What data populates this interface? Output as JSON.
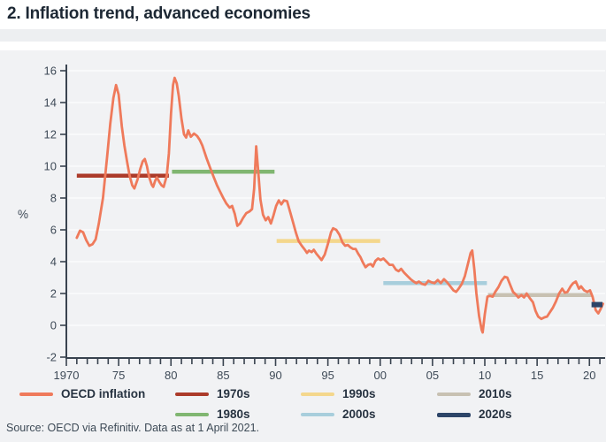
{
  "header": {
    "title": "2. Inflation trend, advanced economies"
  },
  "source": {
    "text": "Source: OECD via Refinitiv. Data as at 1 April 2021."
  },
  "colors": {
    "series": "#EF7A5B",
    "decade_1970s": "#AC3B2A",
    "decade_1980s": "#80B671",
    "decade_1990s": "#F4D78C",
    "decade_2000s": "#A8CEDC",
    "decade_2010s": "#C8C1B2",
    "decade_2020s": "#2D4568",
    "panel_background": "#f1f2f4",
    "axis": "#39434f",
    "tick_text": "#3e4a57"
  },
  "legend": {
    "items": [
      {
        "label": "OECD inflation",
        "color": "#EF7A5B"
      },
      {
        "label": "1970s",
        "color": "#AC3B2A"
      },
      {
        "label": "1980s",
        "color": "#80B671"
      },
      {
        "label": "1990s",
        "color": "#F4D78C"
      },
      {
        "label": "2000s",
        "color": "#A8CEDC"
      },
      {
        "label": "2010s",
        "color": "#C8C1B2"
      },
      {
        "label": "2020s",
        "color": "#2D4568"
      }
    ]
  },
  "chart_data": {
    "type": "line",
    "title": "2. Inflation trend, advanced economies",
    "xlabel": "",
    "ylabel": "%",
    "ylim": [
      -2,
      16
    ],
    "xlim": [
      1970,
      2021.5
    ],
    "grid": "horizontal",
    "legend_position": "bottom",
    "y_ticks": [
      16,
      14,
      12,
      10,
      8,
      6,
      4,
      2,
      0,
      -2
    ],
    "x_ticks": {
      "years": [
        1970,
        1975,
        1980,
        1985,
        1990,
        1995,
        2000,
        2005,
        2010,
        2015,
        2020
      ],
      "labels": [
        "1970",
        "75",
        "80",
        "85",
        "90",
        "95",
        "00",
        "05",
        "10",
        "15",
        "20"
      ]
    },
    "series": [
      {
        "name": "OECD inflation",
        "color": "#EF7A5B",
        "points": [
          [
            1971.0,
            5.5
          ],
          [
            1971.3,
            5.95
          ],
          [
            1971.6,
            5.85
          ],
          [
            1971.9,
            5.35
          ],
          [
            1972.2,
            5.0
          ],
          [
            1972.5,
            5.1
          ],
          [
            1972.8,
            5.4
          ],
          [
            1973.1,
            6.4
          ],
          [
            1973.5,
            8.0
          ],
          [
            1973.9,
            10.6
          ],
          [
            1974.2,
            12.7
          ],
          [
            1974.5,
            14.3
          ],
          [
            1974.75,
            15.1
          ],
          [
            1975.0,
            14.5
          ],
          [
            1975.3,
            12.5
          ],
          [
            1975.55,
            11.3
          ],
          [
            1975.8,
            10.3
          ],
          [
            1976.05,
            9.4
          ],
          [
            1976.3,
            8.8
          ],
          [
            1976.5,
            8.6
          ],
          [
            1976.8,
            9.15
          ],
          [
            1977.05,
            9.8
          ],
          [
            1977.3,
            10.3
          ],
          [
            1977.5,
            10.45
          ],
          [
            1977.7,
            10.0
          ],
          [
            1977.9,
            9.35
          ],
          [
            1978.15,
            8.85
          ],
          [
            1978.3,
            8.7
          ],
          [
            1978.5,
            9.1
          ],
          [
            1978.65,
            9.3
          ],
          [
            1978.9,
            9.0
          ],
          [
            1979.1,
            8.8
          ],
          [
            1979.3,
            8.7
          ],
          [
            1979.6,
            9.4
          ],
          [
            1979.8,
            10.8
          ],
          [
            1980.0,
            13.3
          ],
          [
            1980.2,
            15.1
          ],
          [
            1980.35,
            15.55
          ],
          [
            1980.55,
            15.2
          ],
          [
            1980.75,
            14.4
          ],
          [
            1981.0,
            13.0
          ],
          [
            1981.25,
            12.0
          ],
          [
            1981.45,
            11.8
          ],
          [
            1981.65,
            12.25
          ],
          [
            1981.9,
            11.85
          ],
          [
            1982.2,
            12.05
          ],
          [
            1982.5,
            11.9
          ],
          [
            1982.75,
            11.65
          ],
          [
            1983.0,
            11.3
          ],
          [
            1983.4,
            10.5
          ],
          [
            1983.8,
            9.8
          ],
          [
            1984.1,
            9.3
          ],
          [
            1984.4,
            8.8
          ],
          [
            1984.7,
            8.4
          ],
          [
            1985.0,
            8.0
          ],
          [
            1985.3,
            7.65
          ],
          [
            1985.6,
            7.4
          ],
          [
            1985.85,
            7.5
          ],
          [
            1986.1,
            7.0
          ],
          [
            1986.35,
            6.25
          ],
          [
            1986.6,
            6.4
          ],
          [
            1986.9,
            6.75
          ],
          [
            1987.2,
            7.05
          ],
          [
            1987.5,
            7.15
          ],
          [
            1987.75,
            7.3
          ],
          [
            1987.95,
            8.6
          ],
          [
            1988.15,
            11.25
          ],
          [
            1988.35,
            9.6
          ],
          [
            1988.55,
            7.9
          ],
          [
            1988.8,
            6.95
          ],
          [
            1989.05,
            6.6
          ],
          [
            1989.3,
            6.8
          ],
          [
            1989.55,
            6.4
          ],
          [
            1989.8,
            6.9
          ],
          [
            1990.05,
            7.5
          ],
          [
            1990.3,
            7.85
          ],
          [
            1990.55,
            7.6
          ],
          [
            1990.8,
            7.85
          ],
          [
            1991.1,
            7.8
          ],
          [
            1991.4,
            7.1
          ],
          [
            1991.7,
            6.4
          ],
          [
            1991.95,
            5.8
          ],
          [
            1992.2,
            5.3
          ],
          [
            1992.5,
            5.0
          ],
          [
            1992.8,
            4.75
          ],
          [
            1993.0,
            4.55
          ],
          [
            1993.2,
            4.7
          ],
          [
            1993.45,
            4.6
          ],
          [
            1993.65,
            4.75
          ],
          [
            1993.9,
            4.5
          ],
          [
            1994.15,
            4.3
          ],
          [
            1994.4,
            4.1
          ],
          [
            1994.7,
            4.45
          ],
          [
            1995.0,
            5.1
          ],
          [
            1995.3,
            5.85
          ],
          [
            1995.5,
            6.1
          ],
          [
            1995.8,
            6.0
          ],
          [
            1996.1,
            5.7
          ],
          [
            1996.4,
            5.2
          ],
          [
            1996.65,
            5.0
          ],
          [
            1996.9,
            5.05
          ],
          [
            1997.15,
            4.9
          ],
          [
            1997.4,
            4.8
          ],
          [
            1997.65,
            4.8
          ],
          [
            1997.9,
            4.5
          ],
          [
            1998.1,
            4.3
          ],
          [
            1998.35,
            3.95
          ],
          [
            1998.6,
            3.65
          ],
          [
            1998.85,
            3.8
          ],
          [
            1999.1,
            3.85
          ],
          [
            1999.3,
            3.7
          ],
          [
            1999.55,
            4.05
          ],
          [
            1999.8,
            4.2
          ],
          [
            2000.05,
            4.1
          ],
          [
            2000.3,
            4.2
          ],
          [
            2000.6,
            4.0
          ],
          [
            2000.9,
            3.8
          ],
          [
            2001.2,
            3.8
          ],
          [
            2001.5,
            3.5
          ],
          [
            2001.75,
            3.4
          ],
          [
            2002.0,
            3.55
          ],
          [
            2002.3,
            3.3
          ],
          [
            2002.6,
            3.1
          ],
          [
            2002.9,
            2.9
          ],
          [
            2003.2,
            2.75
          ],
          [
            2003.45,
            2.65
          ],
          [
            2003.7,
            2.75
          ],
          [
            2004.0,
            2.6
          ],
          [
            2004.3,
            2.55
          ],
          [
            2004.6,
            2.8
          ],
          [
            2004.9,
            2.7
          ],
          [
            2005.2,
            2.65
          ],
          [
            2005.5,
            2.85
          ],
          [
            2005.8,
            2.65
          ],
          [
            2006.1,
            2.9
          ],
          [
            2006.4,
            2.7
          ],
          [
            2006.7,
            2.45
          ],
          [
            2007.0,
            2.2
          ],
          [
            2007.25,
            2.1
          ],
          [
            2007.5,
            2.3
          ],
          [
            2007.8,
            2.6
          ],
          [
            2008.1,
            3.1
          ],
          [
            2008.4,
            3.9
          ],
          [
            2008.65,
            4.55
          ],
          [
            2008.8,
            4.7
          ],
          [
            2009.0,
            3.5
          ],
          [
            2009.2,
            2.0
          ],
          [
            2009.45,
            0.6
          ],
          [
            2009.7,
            -0.3
          ],
          [
            2009.8,
            -0.45
          ],
          [
            2010.0,
            0.7
          ],
          [
            2010.25,
            1.8
          ],
          [
            2010.5,
            1.85
          ],
          [
            2010.75,
            1.8
          ],
          [
            2011.0,
            2.1
          ],
          [
            2011.3,
            2.4
          ],
          [
            2011.6,
            2.8
          ],
          [
            2011.9,
            3.05
          ],
          [
            2012.15,
            3.0
          ],
          [
            2012.45,
            2.5
          ],
          [
            2012.7,
            2.1
          ],
          [
            2012.95,
            1.95
          ],
          [
            2013.2,
            1.75
          ],
          [
            2013.5,
            1.9
          ],
          [
            2013.75,
            1.75
          ],
          [
            2014.0,
            2.0
          ],
          [
            2014.3,
            1.7
          ],
          [
            2014.6,
            1.45
          ],
          [
            2014.85,
            0.9
          ],
          [
            2015.1,
            0.55
          ],
          [
            2015.4,
            0.4
          ],
          [
            2015.7,
            0.5
          ],
          [
            2015.95,
            0.55
          ],
          [
            2016.2,
            0.8
          ],
          [
            2016.5,
            1.1
          ],
          [
            2016.8,
            1.5
          ],
          [
            2017.1,
            2.0
          ],
          [
            2017.4,
            2.3
          ],
          [
            2017.65,
            2.05
          ],
          [
            2017.9,
            2.1
          ],
          [
            2018.2,
            2.45
          ],
          [
            2018.45,
            2.65
          ],
          [
            2018.7,
            2.75
          ],
          [
            2019.0,
            2.3
          ],
          [
            2019.2,
            2.45
          ],
          [
            2019.5,
            2.2
          ],
          [
            2019.8,
            2.1
          ],
          [
            2020.05,
            2.2
          ],
          [
            2020.3,
            1.8
          ],
          [
            2020.6,
            0.95
          ],
          [
            2020.85,
            0.75
          ],
          [
            2021.05,
            1.0
          ],
          [
            2021.3,
            1.35
          ]
        ]
      }
    ],
    "decade_averages": [
      {
        "label": "1970s",
        "start": 1971.0,
        "end": 1979.8,
        "value": 9.4,
        "color": "#AC3B2A"
      },
      {
        "label": "1980s",
        "start": 1980.1,
        "end": 1989.9,
        "value": 9.65,
        "color": "#80B671"
      },
      {
        "label": "1990s",
        "start": 1990.1,
        "end": 2000.0,
        "value": 5.3,
        "color": "#F4D78C"
      },
      {
        "label": "2000s",
        "start": 2000.3,
        "end": 2010.2,
        "value": 2.65,
        "color": "#A8CEDC"
      },
      {
        "label": "2010s",
        "start": 2010.3,
        "end": 2020.3,
        "value": 1.9,
        "color": "#C8C1B2"
      },
      {
        "label": "2020s",
        "start": 2020.2,
        "end": 2021.25,
        "value": 1.3,
        "color": "#2D4568"
      }
    ]
  }
}
